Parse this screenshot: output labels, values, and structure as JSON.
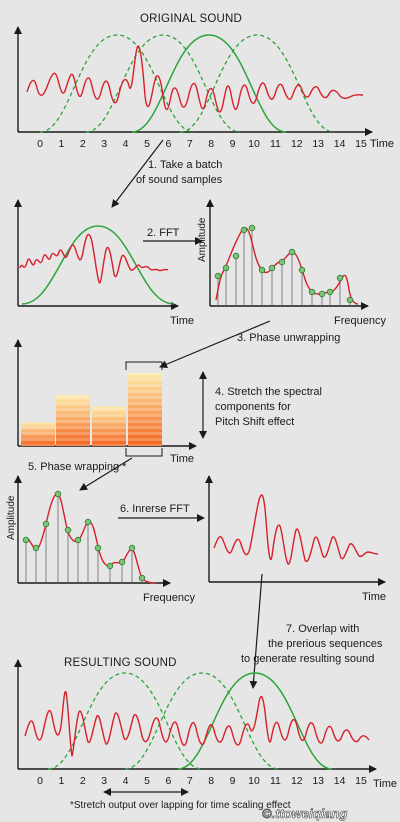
{
  "colors": {
    "background": "#e6e6e6",
    "signal": "#d8202a",
    "window": "#2aa53a",
    "bar_top": "#fde9a8",
    "bar_bottom": "#f4631c"
  },
  "top_panel": {
    "title": "ORIGINAL SOUND",
    "ticks": [
      "0",
      "1",
      "2",
      "3",
      "4",
      "5",
      "6",
      "7",
      "8",
      "9",
      "10",
      "11",
      "12",
      "13",
      "14",
      "15"
    ],
    "axis_label": "Time"
  },
  "steps": {
    "step1_line1": "1. Take a batch",
    "step1_line2": "of sound samples",
    "step2": "2. FFT",
    "step3": "3. Phase unwrapping",
    "step4_line1": "4. Stretch the spectral",
    "step4_line2": "components for",
    "step4_line3": "Pitch Shift effect",
    "step5": "5. Phase wrapping *",
    "step6": "6. Inrerse FFT",
    "step7_line1": "7. Overlap with",
    "step7_line2": "the prerious sequences",
    "step7_line3": "to generate resulting sound"
  },
  "batch_panel": {
    "axis_label": "Time"
  },
  "spectrum_panel": {
    "y_label": "Amplitude",
    "x_label": "Frequency"
  },
  "bars_panel": {
    "axis_label": "Time",
    "bar_heights_fraction": [
      0.31,
      0.67,
      0.52,
      0.96
    ]
  },
  "wrapped_panel": {
    "y_label": "Amplitude",
    "x_label": "Frequency"
  },
  "ifft_panel": {
    "axis_label": "Time"
  },
  "bottom_panel": {
    "title": "RESULTING SOUND",
    "ticks": [
      "0",
      "1",
      "2",
      "3",
      "4",
      "5",
      "6",
      "7",
      "8",
      "9",
      "10",
      "11",
      "12",
      "13",
      "14",
      "15"
    ],
    "axis_label": "Time"
  },
  "footnote": "*Stretch output over lapping for time scaling effect",
  "watermark": "©.ttoweiqiang"
}
